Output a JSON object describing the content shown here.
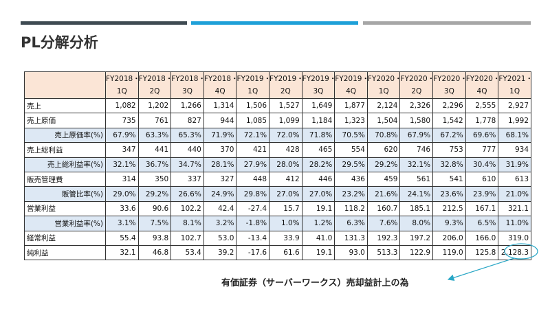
{
  "title": "PL分解分析",
  "table": {
    "header": [
      [
        "FY2018・",
        "1Q"
      ],
      [
        "FY2018・",
        "2Q"
      ],
      [
        "FY2018・",
        "3Q"
      ],
      [
        "FY2018・",
        "4Q"
      ],
      [
        "FY2019・",
        "1Q"
      ],
      [
        "FY2019・",
        "2Q"
      ],
      [
        "FY2019・",
        "3Q"
      ],
      [
        "FY2019・",
        "4Q"
      ],
      [
        "FY2020・",
        "1Q"
      ],
      [
        "FY2020・",
        "2Q"
      ],
      [
        "FY2020・",
        "3Q"
      ],
      [
        "FY2020・",
        "4Q"
      ],
      [
        "FY2021・",
        "1Q"
      ]
    ],
    "rows": [
      {
        "label": "売上",
        "sub": false,
        "cells": [
          "1,082",
          "1,202",
          "1,266",
          "1,314",
          "1,506",
          "1,527",
          "1,649",
          "1,877",
          "2,124",
          "2,326",
          "2,296",
          "2,555",
          "2,927"
        ]
      },
      {
        "label": "売上原価",
        "sub": false,
        "cells": [
          "735",
          "761",
          "827",
          "944",
          "1,085",
          "1,099",
          "1,184",
          "1,323",
          "1,504",
          "1,580",
          "1,542",
          "1,778",
          "1,992"
        ]
      },
      {
        "label": "売上原価率(%)",
        "sub": true,
        "cells": [
          "67.9%",
          "63.3%",
          "65.3%",
          "71.9%",
          "72.1%",
          "72.0%",
          "71.8%",
          "70.5%",
          "70.8%",
          "67.9%",
          "67.2%",
          "69.6%",
          "68.1%"
        ]
      },
      {
        "label": "売上総利益",
        "sub": false,
        "cells": [
          "347",
          "441",
          "440",
          "370",
          "421",
          "428",
          "465",
          "554",
          "620",
          "746",
          "753",
          "777",
          "934"
        ]
      },
      {
        "label": "売上総利益率(%)",
        "sub": true,
        "cells": [
          "32.1%",
          "36.7%",
          "34.7%",
          "28.1%",
          "27.9%",
          "28.0%",
          "28.2%",
          "29.5%",
          "29.2%",
          "32.1%",
          "32.8%",
          "30.4%",
          "31.9%"
        ]
      },
      {
        "label": "販売管理費",
        "sub": false,
        "cells": [
          "314",
          "350",
          "337",
          "327",
          "448",
          "412",
          "446",
          "436",
          "459",
          "561",
          "541",
          "610",
          "613"
        ]
      },
      {
        "label": "販管比率(%)",
        "sub": true,
        "cells": [
          "29.0%",
          "29.2%",
          "26.6%",
          "24.9%",
          "29.8%",
          "27.0%",
          "27.0%",
          "23.2%",
          "21.6%",
          "24.1%",
          "23.6%",
          "23.9%",
          "21.0%"
        ]
      },
      {
        "label": "営業利益",
        "sub": false,
        "cells": [
          "33.6",
          "90.6",
          "102.2",
          "42.4",
          "-27.4",
          "15.7",
          "19.1",
          "118.2",
          "160.7",
          "185.1",
          "212.5",
          "167.1",
          "321.1"
        ]
      },
      {
        "label": "営業利益率(%)",
        "sub": true,
        "cells": [
          "3.1%",
          "7.5%",
          "8.1%",
          "3.2%",
          "-1.8%",
          "1.0%",
          "1.2%",
          "6.3%",
          "7.6%",
          "8.0%",
          "9.3%",
          "6.5%",
          "11.0%"
        ]
      },
      {
        "label": "経常利益",
        "sub": false,
        "cells": [
          "55.4",
          "93.8",
          "102.7",
          "53.0",
          "-13.4",
          "33.9",
          "41.0",
          "131.3",
          "192.3",
          "197.2",
          "206.0",
          "166.0",
          "319.0"
        ]
      },
      {
        "label": "純利益",
        "sub": false,
        "cells": [
          "32.1",
          "46.8",
          "53.4",
          "39.2",
          "-17.6",
          "61.6",
          "19.1",
          "93.0",
          "513.3",
          "122.9",
          "119.0",
          "125.8",
          "2,128.3"
        ]
      }
    ]
  },
  "annotation": "有価証券（サーバーワークス）売却益計上の為"
}
